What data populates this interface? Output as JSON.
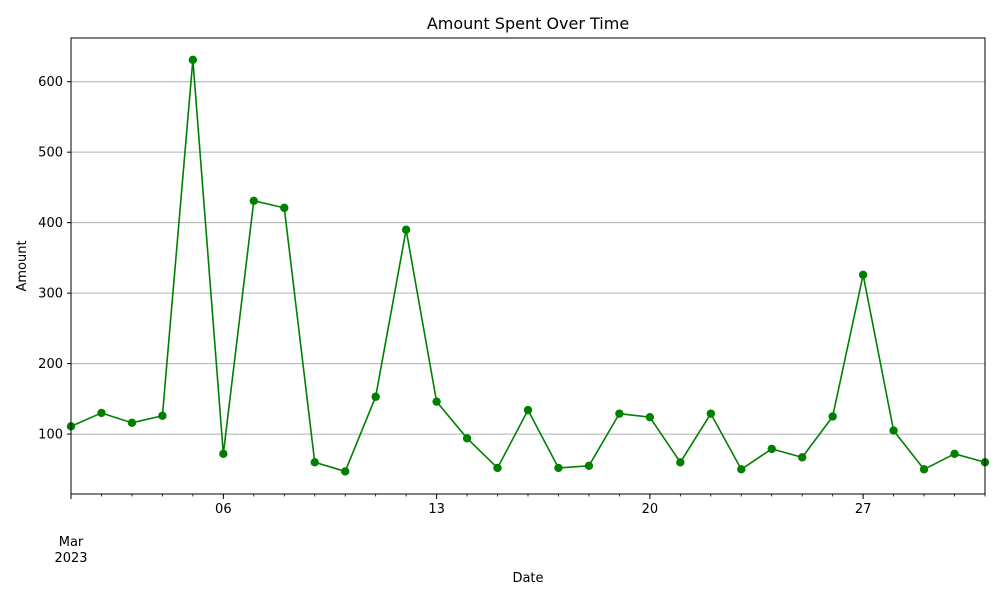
{
  "chart_data": {
    "type": "line",
    "title": "Amount Spent Over Time",
    "xlabel": "Date",
    "ylabel": "Amount",
    "x": [
      "2023-03-01",
      "2023-03-02",
      "2023-03-03",
      "2023-03-04",
      "2023-03-05",
      "2023-03-06",
      "2023-03-07",
      "2023-03-08",
      "2023-03-09",
      "2023-03-10",
      "2023-03-11",
      "2023-03-12",
      "2023-03-13",
      "2023-03-14",
      "2023-03-15",
      "2023-03-16",
      "2023-03-17",
      "2023-03-18",
      "2023-03-19",
      "2023-03-20",
      "2023-03-21",
      "2023-03-22",
      "2023-03-23",
      "2023-03-24",
      "2023-03-25",
      "2023-03-26",
      "2023-03-27",
      "2023-03-28",
      "2023-03-29",
      "2023-03-30",
      "2023-03-31"
    ],
    "series": [
      {
        "values": [
          111,
          130,
          116,
          126,
          631,
          72,
          431,
          421,
          60,
          47,
          153,
          390,
          146,
          94,
          52,
          134,
          52,
          55,
          129,
          124,
          60,
          129,
          50,
          79,
          67,
          125,
          326,
          105,
          50,
          72,
          60
        ]
      }
    ],
    "xlim": [
      "2023-03-01",
      "2023-03-31"
    ],
    "x_ticks": [
      {
        "date": "2023-03-01",
        "label": "Mar",
        "sublabel": "2023"
      },
      {
        "date": "2023-03-06",
        "label": "06"
      },
      {
        "date": "2023-03-13",
        "label": "13"
      },
      {
        "date": "2023-03-20",
        "label": "20"
      },
      {
        "date": "2023-03-27",
        "label": "27"
      }
    ],
    "y_ticks": [
      100,
      200,
      300,
      400,
      500,
      600
    ],
    "ylim": [
      15,
      662
    ],
    "grid": "y",
    "color": "#008000"
  }
}
